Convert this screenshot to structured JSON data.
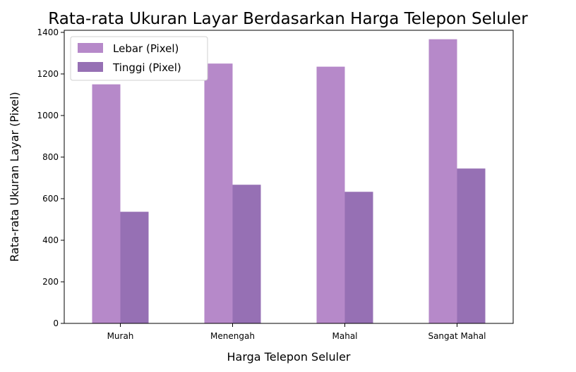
{
  "chart_data": {
    "type": "bar",
    "title": "Rata-rata Ukuran Layar Berdasarkan Harga Telepon Seluler",
    "xlabel": "Harga Telepon Seluler",
    "ylabel": "Rata-rata Ukuran Layar (Pixel)",
    "categories": [
      "Murah",
      "Menengah",
      "Mahal",
      "Sangat Mahal"
    ],
    "series": [
      {
        "name": "Lebar (Pixel)",
        "values": [
          1150,
          1250,
          1235,
          1367
        ],
        "color": "#b689c9"
      },
      {
        "name": "Tinggi (Pixel)",
        "values": [
          537,
          667,
          633,
          745
        ],
        "color": "#9670b4"
      }
    ],
    "ylim": [
      0,
      1400
    ],
    "yticks": [
      "0",
      "200",
      "400",
      "600",
      "800",
      "1000",
      "1200",
      "1400"
    ],
    "legend": "top-left",
    "grid": false
  }
}
